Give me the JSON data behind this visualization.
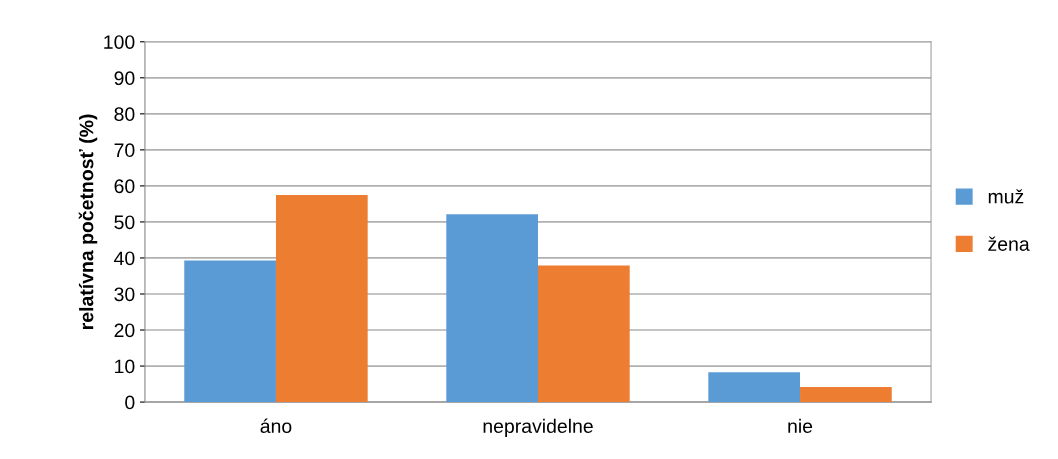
{
  "chart_data": {
    "type": "bar",
    "ylabel": "relatívna početnosť (%)",
    "categories": [
      "áno",
      "nepravidelne",
      "nie"
    ],
    "series": [
      {
        "name": "muž",
        "color": "#5b9bd5",
        "values": [
          39.3,
          52.1,
          8.3
        ]
      },
      {
        "name": "žena",
        "color": "#ed7d31",
        "values": [
          57.5,
          37.9,
          4.2
        ]
      }
    ],
    "ylim": [
      0,
      100
    ],
    "yticks": [
      0,
      10,
      20,
      30,
      40,
      50,
      60,
      70,
      80,
      90,
      100
    ],
    "grid": "y",
    "legend": "right"
  }
}
